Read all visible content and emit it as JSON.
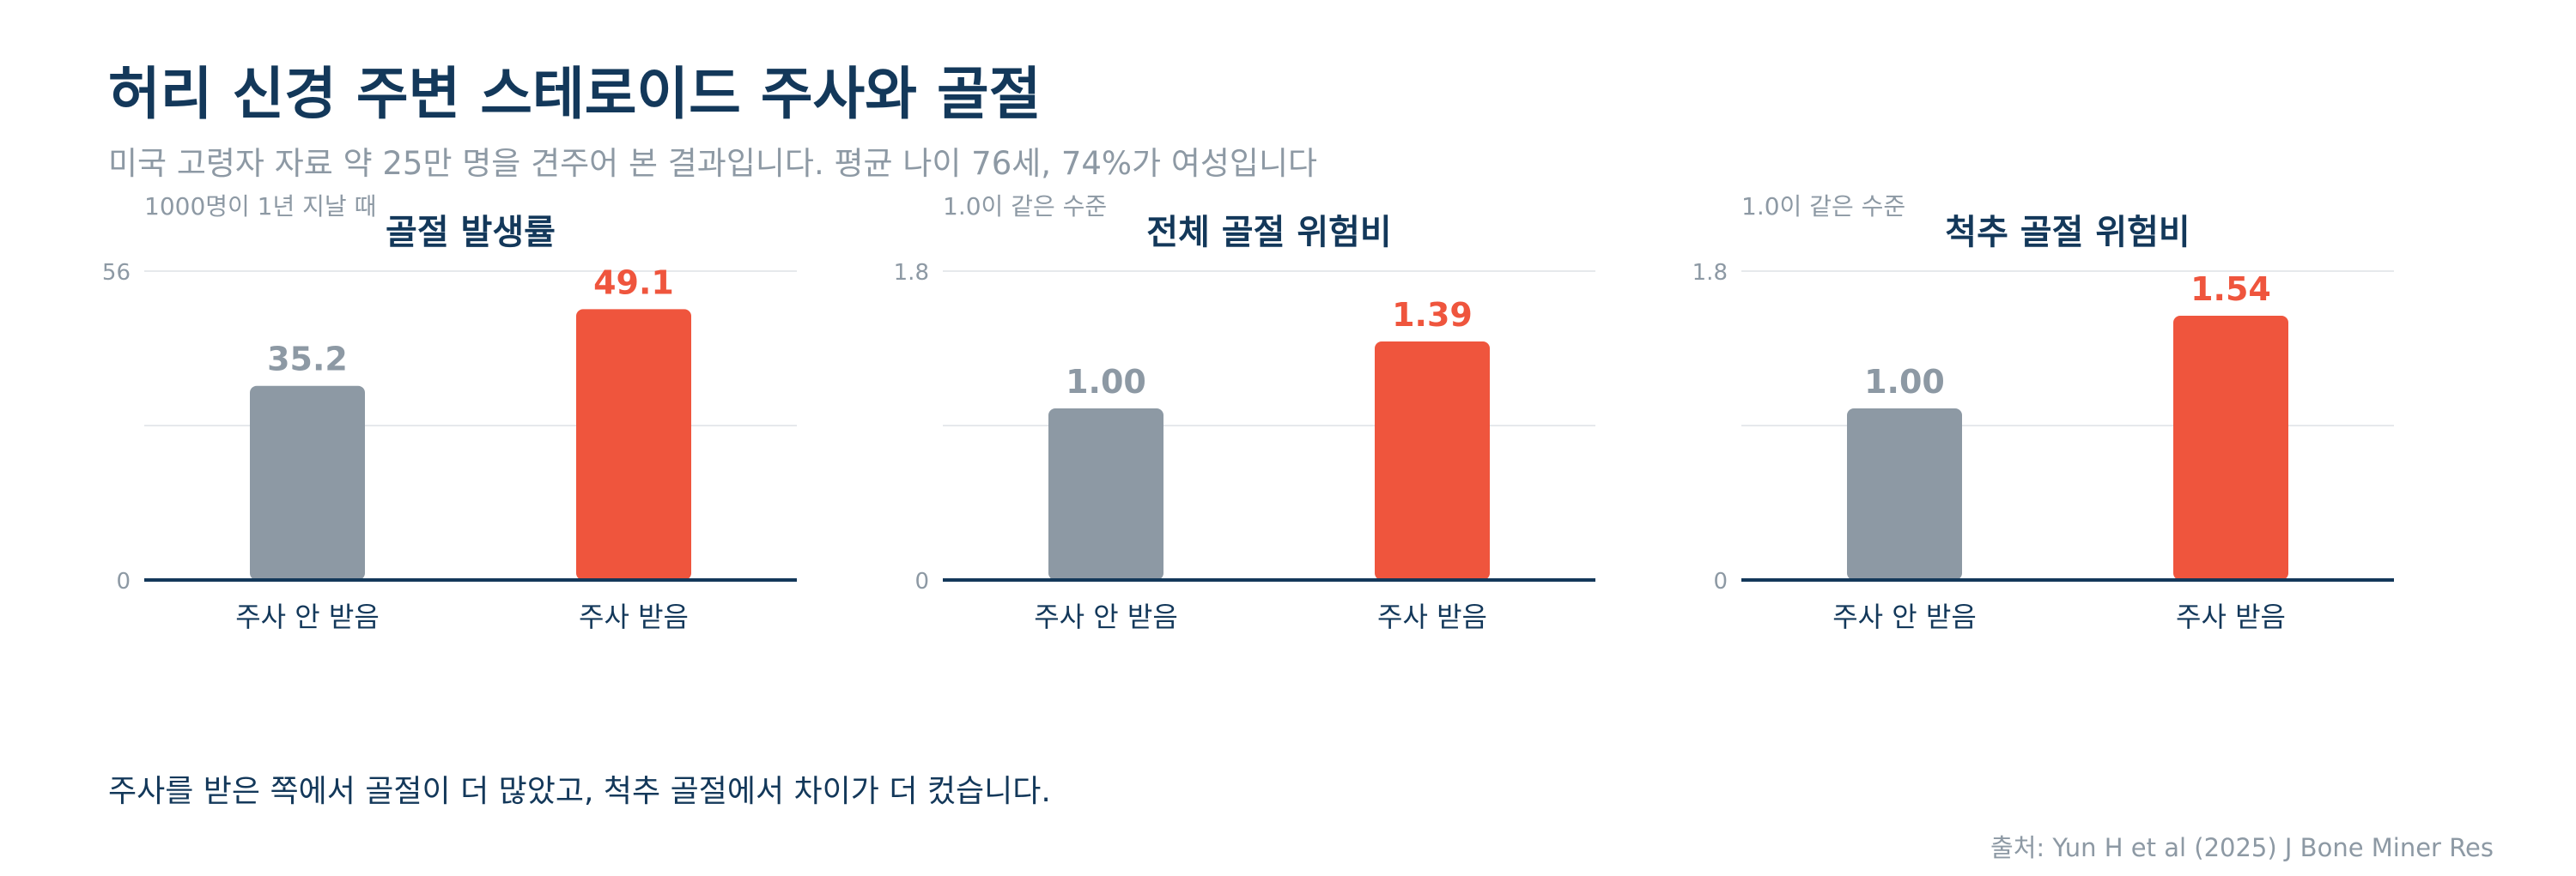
{
  "header": {
    "title": "허리 신경 주변 스테로이드 주사와 골절",
    "subtitle": "미국 고령자 자료 약 25만 명을 견주어 본 결과입니다. 평균 나이 76세, 74%가 여성입니다"
  },
  "footer": {
    "conclusion": "주사를 받은 쪽에서 골절이 더 많았고, 척추 골절에서 차이가 더 컸습니다.",
    "source": "출처: Yun H et al (2025) J Bone Miner Res"
  },
  "colors": {
    "no_injection": "#8d99a4",
    "injection": "#ef553d",
    "axis": "#13385a",
    "grid": "#e6e9ec",
    "title": "#13385a",
    "muted": "#8d99a4"
  },
  "chart_data": [
    {
      "type": "bar",
      "title": "골절 발생률",
      "ylabel": "1000명이 1년 지날 때",
      "categories": [
        "주사 안 받음",
        "주사 받음"
      ],
      "values": [
        35.2,
        49.1
      ],
      "value_labels": [
        "35.2",
        "49.1"
      ],
      "ylim": [
        0,
        56
      ],
      "yticks": [
        "0",
        "56"
      ],
      "grid": true
    },
    {
      "type": "bar",
      "title": "전체 골절 위험비",
      "ylabel": "1.0이 같은 수준",
      "categories": [
        "주사 안 받음",
        "주사 받음"
      ],
      "values": [
        1.0,
        1.39
      ],
      "value_labels": [
        "1.00",
        "1.39"
      ],
      "ylim": [
        0,
        1.8
      ],
      "yticks": [
        "0",
        "1.8"
      ],
      "grid": true
    },
    {
      "type": "bar",
      "title": "척추 골절 위험비",
      "ylabel": "1.0이 같은 수준",
      "categories": [
        "주사 안 받음",
        "주사 받음"
      ],
      "values": [
        1.0,
        1.54
      ],
      "value_labels": [
        "1.00",
        "1.54"
      ],
      "ylim": [
        0,
        1.8
      ],
      "yticks": [
        "0",
        "1.8"
      ],
      "grid": true
    }
  ]
}
